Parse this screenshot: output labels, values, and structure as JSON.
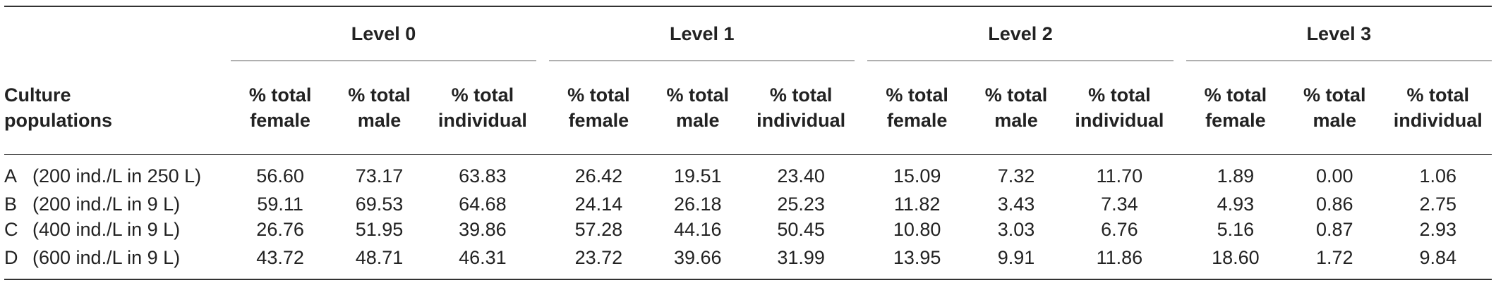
{
  "table": {
    "levels": [
      "Level 0",
      "Level 1",
      "Level 2",
      "Level 3"
    ],
    "first_header": [
      "Culture",
      "populations"
    ],
    "sub_headers": [
      [
        "% total",
        "female"
      ],
      [
        "% total",
        "male"
      ],
      [
        "% total",
        "individual"
      ]
    ],
    "rows": [
      {
        "letter": "A",
        "desc": "(200 ind./L in 250 L)",
        "values": [
          "56.60",
          "73.17",
          "63.83",
          "26.42",
          "19.51",
          "23.40",
          "15.09",
          "7.32",
          "11.70",
          "1.89",
          "0.00",
          "1.06"
        ]
      },
      {
        "letter": "B",
        "desc": "(200 ind./L in 9 L)",
        "values": [
          "59.11",
          "69.53",
          "64.68",
          "24.14",
          "26.18",
          "25.23",
          "11.82",
          "3.43",
          "7.34",
          "4.93",
          "0.86",
          "2.75"
        ]
      },
      {
        "letter": "C",
        "desc": "(400 ind./L in 9 L)",
        "values": [
          "26.76",
          "51.95",
          "39.86",
          "57.28",
          "44.16",
          "50.45",
          "10.80",
          "3.03",
          "6.76",
          "5.16",
          "0.87",
          "2.93"
        ]
      },
      {
        "letter": "D",
        "desc": "(600 ind./L in 9 L)",
        "values": [
          "43.72",
          "48.71",
          "46.31",
          "23.72",
          "39.66",
          "31.99",
          "13.95",
          "9.91",
          "11.86",
          "18.60",
          "1.72",
          "9.84"
        ]
      }
    ]
  }
}
